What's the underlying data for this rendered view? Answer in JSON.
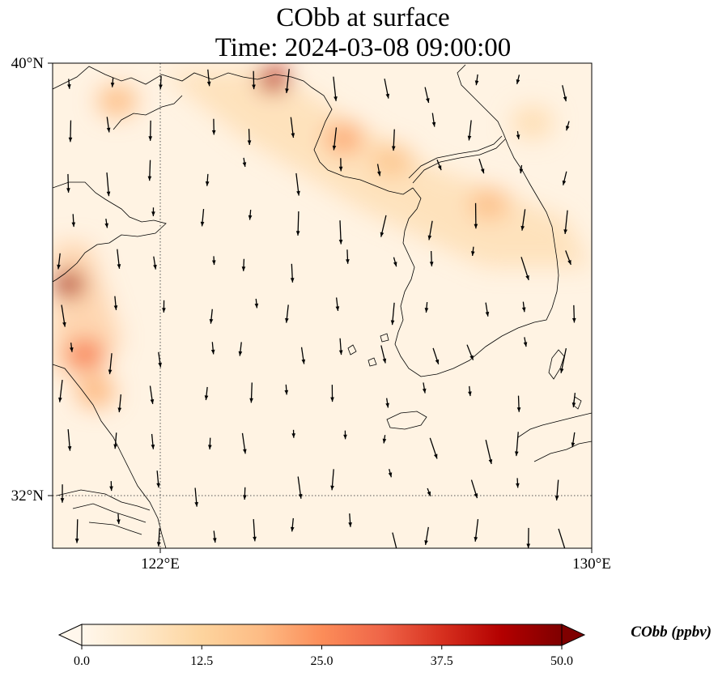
{
  "title": "CObb at surface",
  "subtitle": "Time: 2024-03-08 09:00:00",
  "axes": {
    "lat_ticks": [
      {
        "value": 40,
        "label": "40°N"
      },
      {
        "value": 32,
        "label": "32°N"
      }
    ],
    "lon_ticks": [
      {
        "value": 122,
        "label": "122°E"
      },
      {
        "value": 130,
        "label": "130°E"
      }
    ],
    "lon_range": [
      120,
      130
    ],
    "lat_range": [
      31,
      40
    ],
    "gridlines": "dotted"
  },
  "colorbar": {
    "label": "CObb (ppbv)",
    "ticks": [
      "0.0",
      "12.5",
      "25.0",
      "37.5",
      "50.0"
    ],
    "min": 0,
    "max": 50,
    "extend": "both",
    "colormap": "OrRd",
    "colors": [
      "#fff7ec",
      "#fee8c8",
      "#fdd49e",
      "#fdbb84",
      "#fc8d59",
      "#ef6548",
      "#d7301f",
      "#b30000",
      "#7f0000"
    ]
  },
  "map": {
    "background": "#fff3e3",
    "plumes": [
      {
        "lon": 121.2,
        "lat": 39.3,
        "level": 0.35
      },
      {
        "lon": 124.1,
        "lat": 39.7,
        "level": 0.85
      },
      {
        "lon": 125.4,
        "lat": 38.6,
        "level": 0.42
      },
      {
        "lon": 126.3,
        "lat": 38.2,
        "level": 0.32
      },
      {
        "lon": 128.1,
        "lat": 37.4,
        "level": 0.35
      },
      {
        "lon": 128.9,
        "lat": 38.9,
        "level": 0.18
      },
      {
        "lon": 120.3,
        "lat": 35.9,
        "level": 0.9
      },
      {
        "lon": 120.6,
        "lat": 34.6,
        "level": 0.55
      },
      {
        "lon": 120.8,
        "lat": 33.9,
        "level": 0.38
      }
    ],
    "wind_vectors": "uniform SE-ward flow"
  }
}
